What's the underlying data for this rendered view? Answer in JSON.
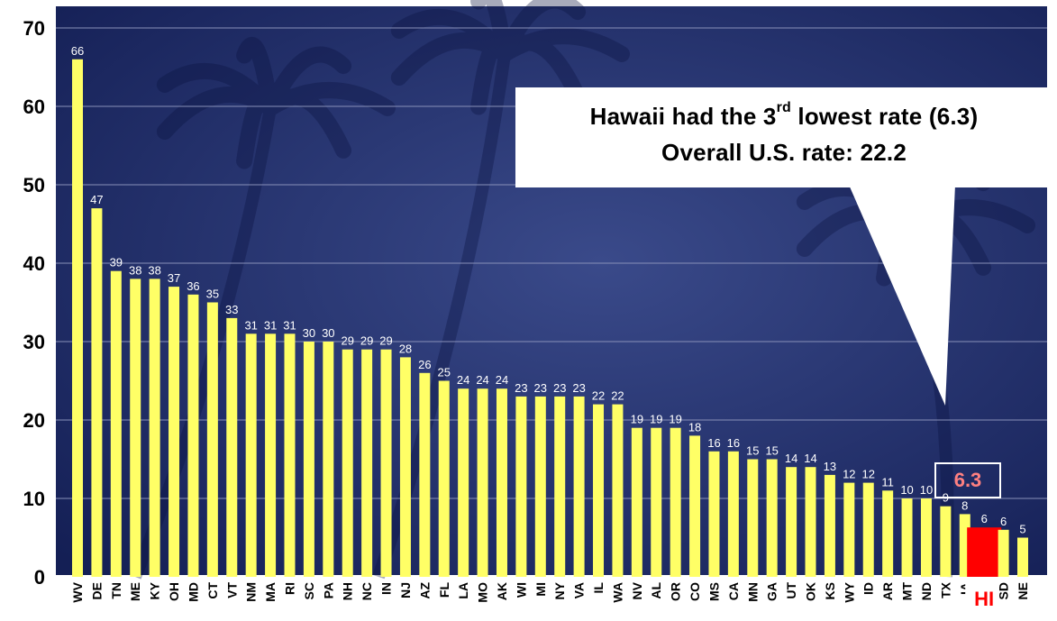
{
  "chart_data": {
    "type": "bar",
    "categories": [
      "WV",
      "DE",
      "TN",
      "ME",
      "KY",
      "OH",
      "MD",
      "CT",
      "VT",
      "NM",
      "MA",
      "RI",
      "SC",
      "PA",
      "NH",
      "NC",
      "IN",
      "NJ",
      "AZ",
      "FL",
      "LA",
      "MO",
      "AK",
      "WI",
      "MI",
      "NY",
      "VA",
      "IL",
      "WA",
      "NV",
      "AL",
      "OR",
      "CO",
      "MS",
      "CA",
      "MN",
      "GA",
      "UT",
      "OK",
      "KS",
      "WY",
      "ID",
      "AR",
      "MT",
      "ND",
      "TX",
      "IA",
      "HI",
      "SD",
      "NE"
    ],
    "values": [
      66,
      47,
      39,
      38,
      38,
      37,
      36,
      35,
      33,
      31,
      31,
      31,
      30,
      30,
      29,
      29,
      29,
      28,
      26,
      25,
      24,
      24,
      24,
      23,
      23,
      23,
      23,
      22,
      22,
      19,
      19,
      19,
      18,
      16,
      16,
      15,
      15,
      14,
      14,
      13,
      12,
      12,
      11,
      10,
      10,
      9,
      8,
      6.3,
      6,
      5
    ],
    "data_labels": [
      "66",
      "47",
      "39",
      "38",
      "38",
      "37",
      "36",
      "35",
      "33",
      "31",
      "31",
      "31",
      "30",
      "30",
      "29",
      "29",
      "29",
      "28",
      "26",
      "25",
      "24",
      "24",
      "24",
      "23",
      "23",
      "23",
      "23",
      "22",
      "22",
      "19",
      "19",
      "19",
      "18",
      "16",
      "16",
      "15",
      "15",
      "14",
      "14",
      "13",
      "12",
      "12",
      "11",
      "10",
      "10",
      "9",
      "8",
      "6",
      "6",
      "5"
    ],
    "highlight": "HI",
    "highlight_callout": "6.3",
    "yticks": [
      "0",
      "10",
      "20",
      "30",
      "40",
      "50",
      "60",
      "70"
    ],
    "ylim": [
      0,
      70
    ],
    "grid": true,
    "title": "",
    "xlabel": "",
    "ylabel": "",
    "colors": {
      "bar": "#ffff66",
      "highlight_bar": "#ff0000",
      "highlight_label": "#ff0000",
      "highlight_value": "#ff8080",
      "background": "#1c2a66",
      "gridline": "#8890b8",
      "text": "#ffffff",
      "axis_text": "#000000"
    }
  },
  "callout": {
    "line1_prefix": "Hawaii had the 3",
    "line1_sup": "rd",
    "line1_suffix": " lowest rate (6.3)",
    "line2": "Overall U.S. rate: 22.2"
  }
}
